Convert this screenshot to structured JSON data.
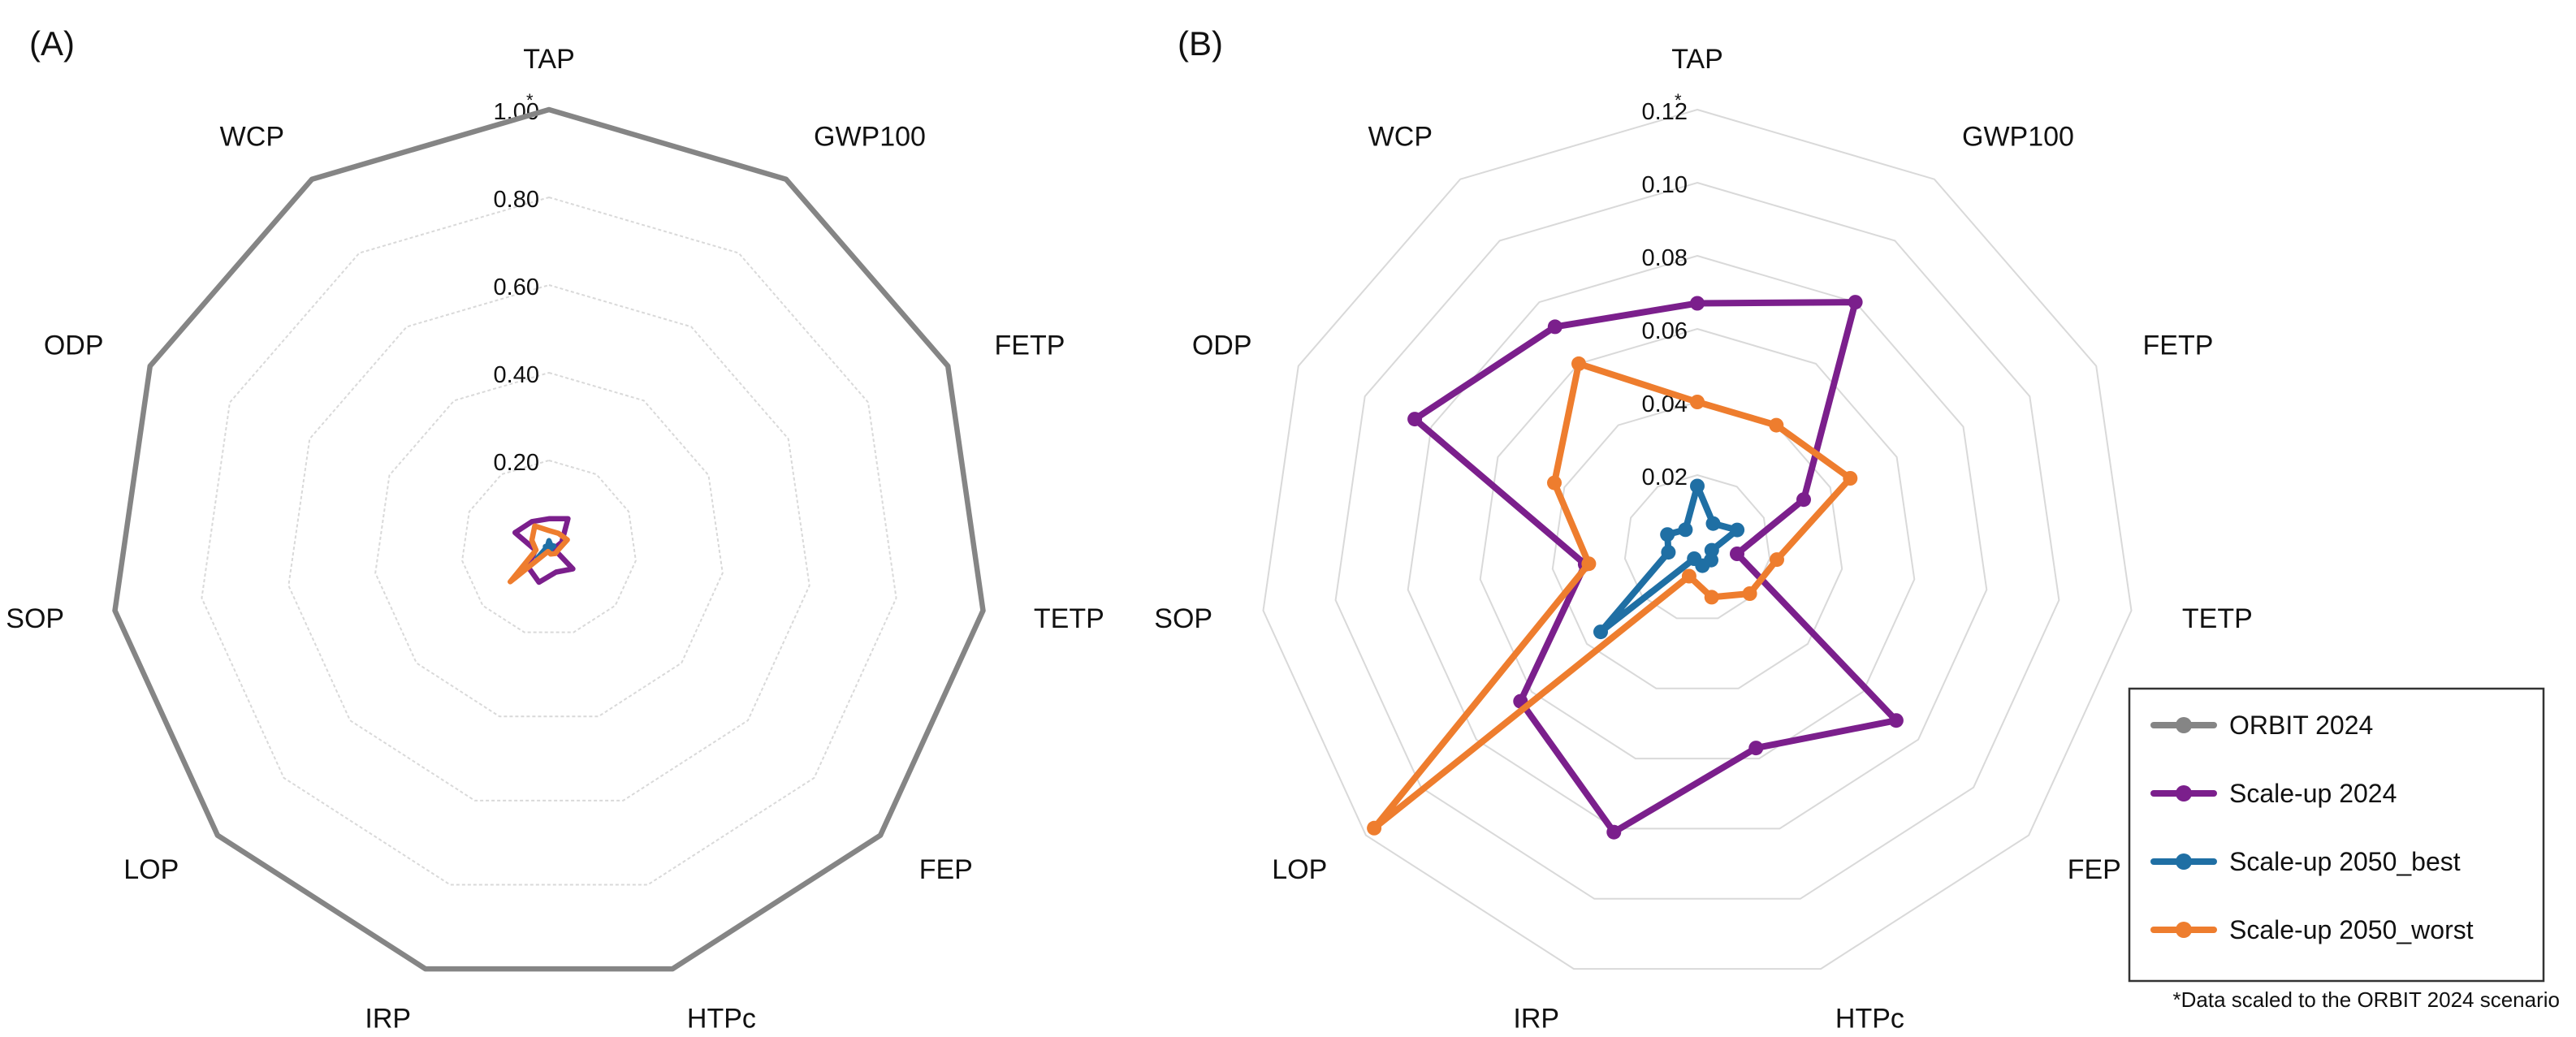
{
  "footnote": "*Data scaled to the ORBIT 2024 scenario",
  "legend": [
    {
      "name": "ORBIT 2024",
      "color": "#858585"
    },
    {
      "name": "Scale-up 2024",
      "color": "#7b1f8c"
    },
    {
      "name": "Scale-up 2050_best",
      "color": "#1f6fa4"
    },
    {
      "name": "Scale-up 2050_worst",
      "color": "#ee7d2e"
    }
  ],
  "chart_data": [
    {
      "type": "radar",
      "panel": "(A)",
      "axes": [
        "TAP",
        "GWP100",
        "FETP",
        "TETP",
        "FEP",
        "HTPc",
        "IRP",
        "LOP",
        "SOP",
        "ODP",
        "WCP"
      ],
      "rmax": 1.0,
      "ticks": [
        0.2,
        0.4,
        0.6,
        0.8
      ],
      "tick_labels": [
        "0.20",
        "0.40",
        "0.60",
        "0.80",
        "1.00"
      ],
      "max_marker": "*",
      "series": [
        {
          "name": "ORBIT 2024",
          "color": "#858585",
          "markers": false,
          "values": [
            1,
            1,
            1,
            1,
            1,
            1,
            1,
            1,
            1,
            1,
            1
          ]
        },
        {
          "name": "Scale-up 2024",
          "color": "#7b1f8c",
          "markers": false,
          "values": [
            0.067,
            0.08,
            0.032,
            0.011,
            0.072,
            0.057,
            0.081,
            0.064,
            0.031,
            0.085,
            0.072
          ]
        },
        {
          "name": "Scale-up 2050_best",
          "color": "#1f6fa4",
          "markers": false,
          "values": [
            0.017,
            0.008,
            0.012,
            0.004,
            0.005,
            0.005,
            0.003,
            0.035,
            0.008,
            0.009,
            0.006
          ]
        },
        {
          "name": "Scale-up 2050_worst",
          "color": "#ee7d2e",
          "markers": false,
          "values": [
            0.04,
            0.04,
            0.046,
            0.022,
            0.019,
            0.014,
            0.008,
            0.117,
            0.03,
            0.043,
            0.06
          ]
        }
      ]
    },
    {
      "type": "radar",
      "panel": "(B)",
      "axes": [
        "TAP",
        "GWP100",
        "FETP",
        "TETP",
        "FEP",
        "HTPc",
        "IRP",
        "LOP",
        "SOP",
        "ODP",
        "WCP"
      ],
      "rmax": 0.12,
      "ticks": [
        0.02,
        0.04,
        0.06,
        0.08,
        0.1
      ],
      "tick_labels": [
        "0.02",
        "0.04",
        "0.06",
        "0.08",
        "0.10",
        "0.12"
      ],
      "max_marker": "*",
      "series": [
        {
          "name": "Scale-up 2024",
          "color": "#7b1f8c",
          "markers": true,
          "values": [
            0.067,
            0.08,
            0.032,
            0.011,
            0.072,
            0.057,
            0.081,
            0.064,
            0.031,
            0.085,
            0.072
          ]
        },
        {
          "name": "Scale-up 2050_best",
          "color": "#1f6fa4",
          "markers": true,
          "values": [
            0.017,
            0.008,
            0.012,
            0.004,
            0.005,
            0.005,
            0.003,
            0.035,
            0.008,
            0.009,
            0.006
          ]
        },
        {
          "name": "Scale-up 2050_worst",
          "color": "#ee7d2e",
          "markers": true,
          "values": [
            0.04,
            0.04,
            0.046,
            0.022,
            0.019,
            0.014,
            0.008,
            0.117,
            0.03,
            0.043,
            0.06
          ]
        }
      ]
    }
  ]
}
